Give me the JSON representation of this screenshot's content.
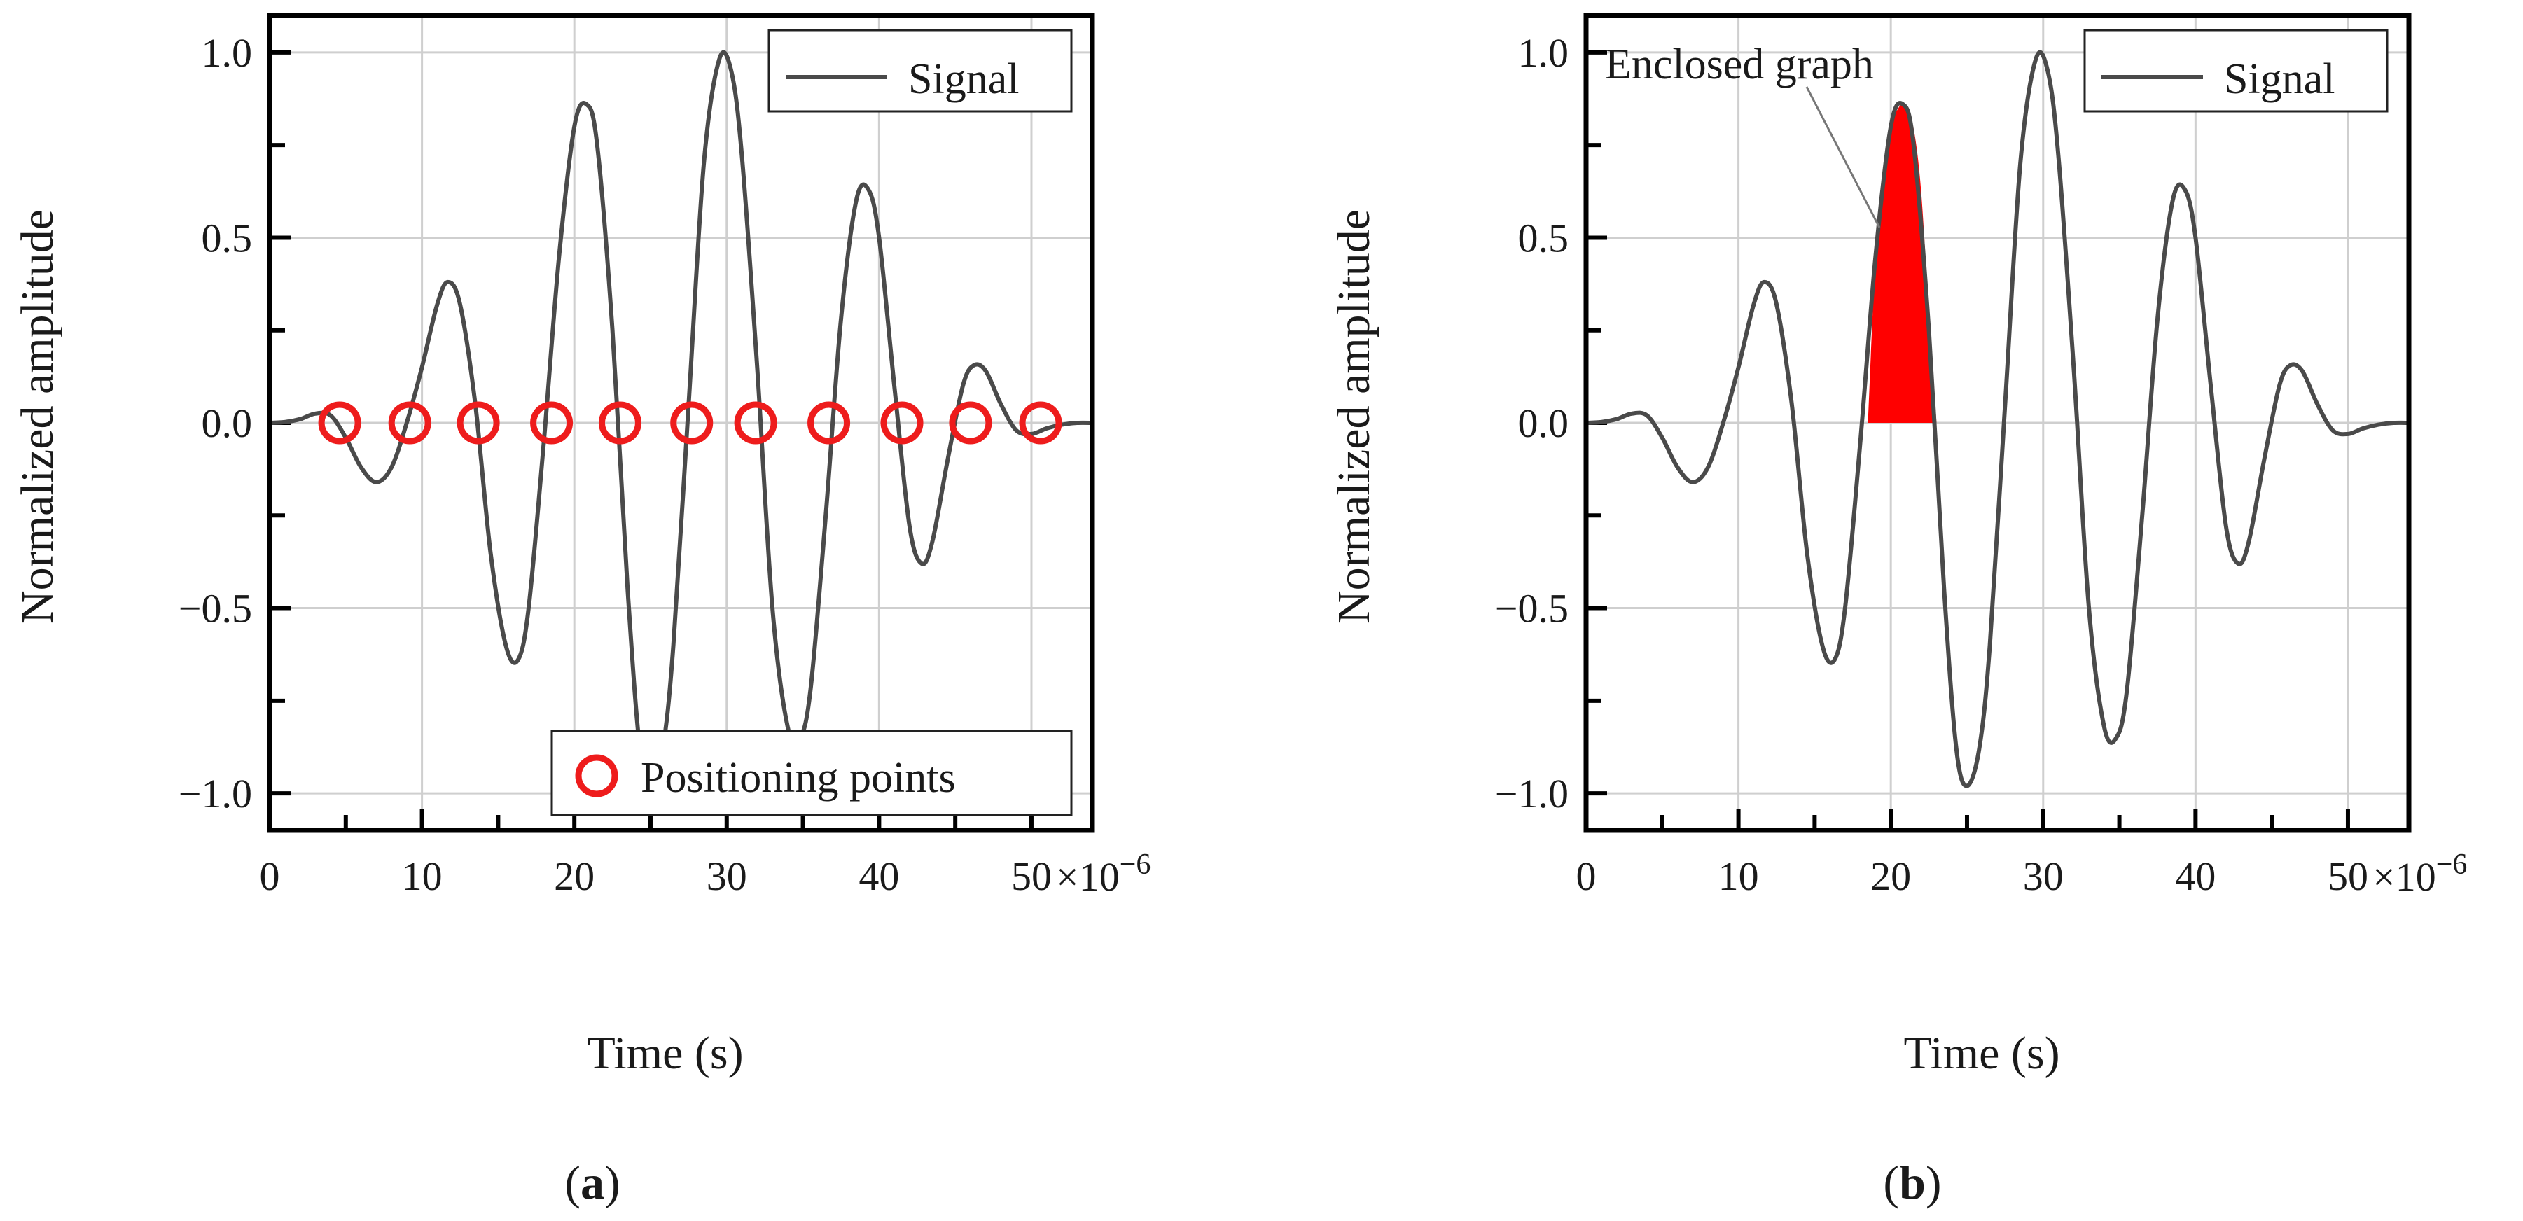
{
  "chart_data": [
    {
      "type": "line",
      "panel_label_open": "(",
      "panel_label_letter": "a",
      "panel_label_close": ")",
      "xlabel": "Time (s)",
      "ylabel": "Normalized amplitude",
      "x_multiplier_base": "×10",
      "x_multiplier_exponent": "−6",
      "xlim": [
        0,
        54
      ],
      "ylim": [
        -1.1,
        1.1
      ],
      "x_ticks": [
        0,
        10,
        20,
        30,
        40,
        50
      ],
      "x_tick_labels": [
        "0",
        "10",
        "20",
        "30",
        "40",
        "50"
      ],
      "y_ticks": [
        -1.0,
        -0.5,
        0.0,
        0.5,
        1.0
      ],
      "y_tick_labels": [
        "−1.0",
        "−0.5",
        "0.0",
        "0.5",
        "1.0"
      ],
      "grid": true,
      "series": [
        {
          "name": "Signal",
          "color": "#4a4a4a",
          "x": [
            0,
            1,
            2,
            3,
            4,
            5,
            6,
            7,
            8,
            9,
            10,
            11,
            11.7,
            12.5,
            13.5,
            14.5,
            15.5,
            16.3,
            17,
            18,
            19,
            20,
            20.8,
            21.5,
            22.5,
            23.5,
            24.3,
            25,
            25.8,
            26.5,
            27.5,
            28.5,
            29.5,
            30.3,
            31,
            32,
            33,
            34,
            34.8,
            35.5,
            36.5,
            37.5,
            38.5,
            39.3,
            40,
            41,
            42,
            42.8,
            43.5,
            44.5,
            45.5,
            46.2,
            47,
            48,
            49,
            50,
            51,
            52,
            53,
            54
          ],
          "y": [
            0.0,
            0.002,
            0.01,
            0.025,
            0.02,
            -0.04,
            -0.12,
            -0.16,
            -0.12,
            0.0,
            0.15,
            0.32,
            0.38,
            0.32,
            0.05,
            -0.35,
            -0.6,
            -0.64,
            -0.5,
            -0.05,
            0.45,
            0.8,
            0.86,
            0.75,
            0.25,
            -0.45,
            -0.88,
            -0.98,
            -0.88,
            -0.6,
            0.05,
            0.7,
            0.98,
            0.95,
            0.72,
            0.15,
            -0.5,
            -0.82,
            -0.85,
            -0.72,
            -0.25,
            0.28,
            0.6,
            0.63,
            0.5,
            0.1,
            -0.28,
            -0.38,
            -0.32,
            -0.1,
            0.1,
            0.155,
            0.14,
            0.05,
            -0.02,
            -0.03,
            -0.015,
            -0.005,
            0.0,
            0.0
          ]
        },
        {
          "name": "Positioning points",
          "color": "#ee1c1c",
          "x": [
            4.6,
            9.2,
            13.7,
            18.5,
            23.0,
            27.7,
            31.9,
            36.7,
            41.5,
            46.0,
            50.6
          ],
          "y": [
            0,
            0,
            0,
            0,
            0,
            0,
            0,
            0,
            0,
            0,
            0
          ]
        }
      ],
      "legend": [
        {
          "label": "Signal",
          "marker": "line",
          "placement": "top-right"
        },
        {
          "label": "Positioning points",
          "marker": "circle",
          "placement": "bottom-right"
        }
      ]
    },
    {
      "type": "line",
      "panel_label_open": "(",
      "panel_label_letter": "b",
      "panel_label_close": ")",
      "xlabel": "Time (s)",
      "ylabel": "Normalized amplitude",
      "x_multiplier_base": "×10",
      "x_multiplier_exponent": "−6",
      "xlim": [
        0,
        54
      ],
      "ylim": [
        -1.1,
        1.1
      ],
      "x_ticks": [
        0,
        10,
        20,
        30,
        40,
        50
      ],
      "x_tick_labels": [
        "0",
        "10",
        "20",
        "30",
        "40",
        "50"
      ],
      "y_ticks": [
        -1.0,
        -0.5,
        0.0,
        0.5,
        1.0
      ],
      "y_tick_labels": [
        "−1.0",
        "−0.5",
        "0.0",
        "0.5",
        "1.0"
      ],
      "grid": true,
      "series": [
        {
          "name": "Signal",
          "color": "#4a4a4a",
          "x": [
            0,
            1,
            2,
            3,
            4,
            5,
            6,
            7,
            8,
            9,
            10,
            11,
            11.7,
            12.5,
            13.5,
            14.5,
            15.5,
            16.3,
            17,
            18,
            19,
            20,
            20.8,
            21.5,
            22.5,
            23.5,
            24.3,
            25,
            25.8,
            26.5,
            27.5,
            28.5,
            29.5,
            30.3,
            31,
            32,
            33,
            34,
            34.8,
            35.5,
            36.5,
            37.5,
            38.5,
            39.3,
            40,
            41,
            42,
            42.8,
            43.5,
            44.5,
            45.5,
            46.2,
            47,
            48,
            49,
            50,
            51,
            52,
            53,
            54
          ],
          "y": [
            0.0,
            0.002,
            0.01,
            0.025,
            0.02,
            -0.04,
            -0.12,
            -0.16,
            -0.12,
            0.0,
            0.15,
            0.32,
            0.38,
            0.32,
            0.05,
            -0.35,
            -0.6,
            -0.64,
            -0.5,
            -0.05,
            0.45,
            0.8,
            0.86,
            0.75,
            0.25,
            -0.45,
            -0.88,
            -0.98,
            -0.88,
            -0.6,
            0.05,
            0.7,
            0.98,
            0.95,
            0.72,
            0.15,
            -0.5,
            -0.82,
            -0.85,
            -0.72,
            -0.25,
            0.28,
            0.6,
            0.63,
            0.5,
            0.1,
            -0.28,
            -0.38,
            -0.32,
            -0.1,
            0.1,
            0.155,
            0.14,
            0.05,
            -0.02,
            -0.03,
            -0.015,
            -0.005,
            0.0,
            0.0
          ]
        }
      ],
      "fill_region": {
        "label": "Enclosed graph",
        "color": "#ff0000",
        "x": [
          18.5,
          19,
          19.5,
          20,
          20.5,
          20.8,
          21.2,
          21.6,
          22.0,
          22.5,
          23.0
        ],
        "y": [
          0.0,
          0.45,
          0.65,
          0.8,
          0.85,
          0.86,
          0.84,
          0.77,
          0.62,
          0.3,
          0.0
        ]
      },
      "legend": [
        {
          "label": "Signal",
          "marker": "line",
          "placement": "top-right"
        }
      ]
    }
  ]
}
